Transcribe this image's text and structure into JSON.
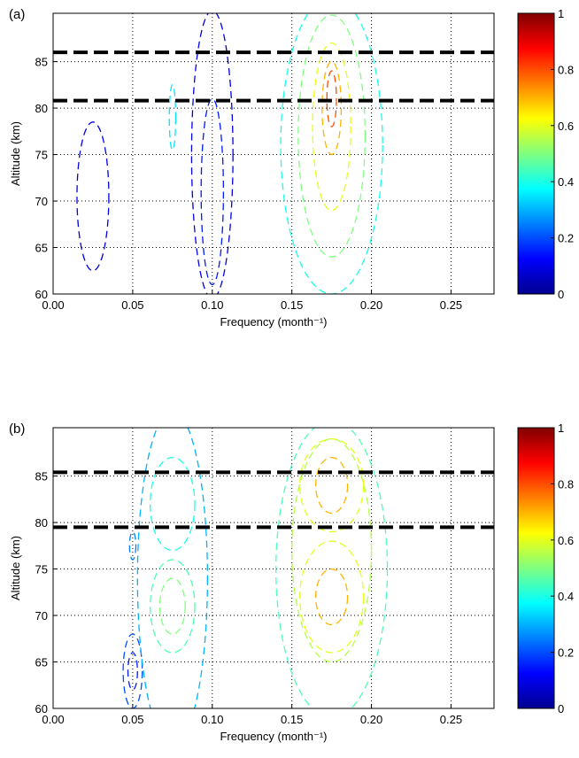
{
  "chart_data": [
    {
      "type": "contour",
      "panel_label": "(a)",
      "xlabel": "Frequency (month⁻¹)",
      "ylabel": "Altitude (km)",
      "xlim": [
        0,
        0.277
      ],
      "ylim": [
        60,
        90.2
      ],
      "xticks": [
        {
          "value": 0,
          "label": "0.00"
        },
        {
          "value": 0.05,
          "label": "0.05"
        },
        {
          "value": 0.1,
          "label": "0.10"
        },
        {
          "value": 0.15,
          "label": "0.15"
        },
        {
          "value": 0.2,
          "label": "0.20"
        },
        {
          "value": 0.25,
          "label": "0.25"
        }
      ],
      "yticks": [
        60,
        65,
        70,
        75,
        80,
        85
      ],
      "grid": true,
      "hlines": [
        86,
        80.8
      ],
      "colormap": "jet",
      "clim": [
        0,
        1
      ],
      "cticks": [
        0,
        0.2,
        0.4,
        0.6,
        0.8,
        1
      ],
      "contours": [
        {
          "level": 0.1,
          "cx": 0.025,
          "cy": 70.5,
          "rx": 0.01,
          "ry": 8
        },
        {
          "level": 0.1,
          "cx": 0.1,
          "cy": 75,
          "rx": 0.013,
          "ry": 15.5
        },
        {
          "level": 0.15,
          "cx": 0.1,
          "cy": 71,
          "rx": 0.007,
          "ry": 10
        },
        {
          "level": 0.35,
          "cx": 0.075,
          "cy": 79,
          "rx": 0.002,
          "ry": 3.5
        },
        {
          "level": 0.4,
          "cx": 0.175,
          "cy": 76,
          "rx": 0.032,
          "ry": 16
        },
        {
          "level": 0.5,
          "cx": 0.175,
          "cy": 77,
          "rx": 0.021,
          "ry": 13
        },
        {
          "level": 0.6,
          "cx": 0.175,
          "cy": 78,
          "rx": 0.012,
          "ry": 9
        },
        {
          "level": 0.7,
          "cx": 0.175,
          "cy": 80,
          "rx": 0.006,
          "ry": 5
        },
        {
          "level": 0.8,
          "cx": 0.175,
          "cy": 81,
          "rx": 0.003,
          "ry": 3
        }
      ]
    },
    {
      "type": "contour",
      "panel_label": "(b)",
      "xlabel": "Frequency (month⁻¹)",
      "ylabel": "Altitude (km)",
      "xlim": [
        0,
        0.277
      ],
      "ylim": [
        60,
        90.2
      ],
      "xticks": [
        {
          "value": 0,
          "label": "0.00"
        },
        {
          "value": 0.05,
          "label": "0.05"
        },
        {
          "value": 0.1,
          "label": "0.10"
        },
        {
          "value": 0.15,
          "label": "0.15"
        },
        {
          "value": 0.2,
          "label": "0.20"
        },
        {
          "value": 0.25,
          "label": "0.25"
        }
      ],
      "yticks": [
        60,
        65,
        70,
        75,
        80,
        85
      ],
      "grid": true,
      "hlines": [
        85.4,
        79.5
      ],
      "colormap": "jet",
      "clim": [
        0,
        1
      ],
      "cticks": [
        0,
        0.2,
        0.4,
        0.6,
        0.8,
        1
      ],
      "contours": [
        {
          "level": 0.2,
          "cx": 0.05,
          "cy": 64,
          "rx": 0.006,
          "ry": 4
        },
        {
          "level": 0.15,
          "cx": 0.05,
          "cy": 64,
          "rx": 0.003,
          "ry": 2
        },
        {
          "level": 0.25,
          "cx": 0.05,
          "cy": 77.5,
          "rx": 0.002,
          "ry": 1.5
        },
        {
          "level": 0.3,
          "cx": 0.075,
          "cy": 74,
          "rx": 0.022,
          "ry": 18
        },
        {
          "level": 0.4,
          "cx": 0.075,
          "cy": 82,
          "rx": 0.014,
          "ry": 5
        },
        {
          "level": 0.45,
          "cx": 0.075,
          "cy": 71,
          "rx": 0.014,
          "ry": 5
        },
        {
          "level": 0.5,
          "cx": 0.075,
          "cy": 71,
          "rx": 0.008,
          "ry": 3
        },
        {
          "level": 0.45,
          "cx": 0.175,
          "cy": 75,
          "rx": 0.035,
          "ry": 16
        },
        {
          "level": 0.55,
          "cx": 0.175,
          "cy": 77,
          "rx": 0.025,
          "ry": 12
        },
        {
          "level": 0.6,
          "cx": 0.175,
          "cy": 72,
          "rx": 0.02,
          "ry": 6
        },
        {
          "level": 0.6,
          "cx": 0.175,
          "cy": 84,
          "rx": 0.02,
          "ry": 5
        },
        {
          "level": 0.7,
          "cx": 0.175,
          "cy": 72,
          "rx": 0.01,
          "ry": 3
        },
        {
          "level": 0.7,
          "cx": 0.175,
          "cy": 84,
          "rx": 0.01,
          "ry": 3
        }
      ]
    }
  ]
}
